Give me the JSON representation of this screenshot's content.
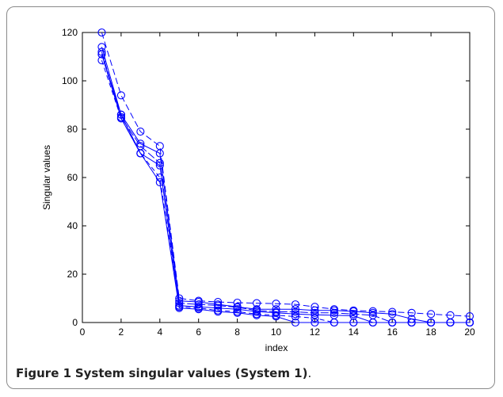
{
  "caption": {
    "label": "Figure 1",
    "title": "System singular values (System 1)",
    "end": "."
  },
  "chart_data": {
    "type": "line",
    "title": "",
    "xlabel": "index",
    "ylabel": "Singular values",
    "xlim": [
      0,
      20
    ],
    "ylim": [
      0,
      120
    ],
    "xticks": [
      0,
      2,
      4,
      6,
      8,
      10,
      12,
      14,
      16,
      18,
      20
    ],
    "yticks": [
      0,
      20,
      40,
      60,
      80,
      100,
      120
    ],
    "grid": false,
    "marker": "circle",
    "color": "#0000ff",
    "series": [
      {
        "x": [
          1,
          2,
          3,
          4,
          5,
          6,
          7,
          8,
          9,
          10,
          11,
          12,
          13,
          14,
          15,
          16,
          17,
          18,
          19,
          20
        ],
        "values": [
          120,
          94,
          79,
          73,
          10,
          9,
          8.5,
          8.2,
          8,
          7.8,
          7.5,
          6.5,
          5.5,
          5,
          4.7,
          4.4,
          4,
          3.5,
          3,
          2.6
        ]
      },
      {
        "x": [
          1,
          2,
          3,
          4,
          5,
          6,
          7,
          8,
          9,
          10,
          11,
          12,
          13,
          14,
          15,
          16,
          17,
          18,
          19,
          20
        ],
        "values": [
          114,
          86,
          74,
          70,
          9,
          8.5,
          7.5,
          6.5,
          5.5,
          5.5,
          5.5,
          5,
          5,
          4.6,
          4,
          3.5,
          1.5,
          0,
          0,
          0
        ]
      },
      {
        "x": [
          1,
          2,
          3,
          4,
          5,
          6,
          7,
          8,
          9,
          10,
          11,
          12,
          13,
          14,
          15,
          16,
          17,
          18,
          19,
          20
        ],
        "values": [
          112,
          85,
          73,
          66,
          8,
          7.5,
          7,
          6.3,
          5,
          4.5,
          4.4,
          4,
          4,
          3.5,
          3,
          0,
          0,
          0,
          0,
          0
        ]
      },
      {
        "x": [
          1,
          2,
          3,
          4,
          5,
          6,
          7,
          8,
          9,
          10,
          11,
          12,
          13,
          14,
          15,
          16,
          17,
          18,
          19,
          20
        ],
        "values": [
          111,
          84.5,
          70,
          65,
          7,
          6.5,
          6,
          5.5,
          4.5,
          4,
          3.5,
          3.2,
          3,
          2.8,
          0,
          0,
          0,
          0,
          0,
          0
        ]
      },
      {
        "x": [
          1,
          2,
          3,
          4,
          5,
          6,
          7,
          8,
          9,
          10,
          11,
          12,
          13,
          14,
          15,
          16,
          17,
          18,
          19,
          20
        ],
        "values": [
          108.5,
          84.5,
          70,
          60,
          6.5,
          6,
          5,
          4.5,
          3.5,
          3,
          2.5,
          1.8,
          0,
          0,
          0,
          0,
          0,
          0,
          0,
          0
        ]
      },
      {
        "x": [
          1,
          2,
          3,
          4,
          5,
          6,
          7,
          8,
          9,
          10,
          11,
          12,
          13,
          14,
          15,
          16,
          17,
          18,
          19,
          20
        ],
        "values": [
          111,
          86,
          70,
          58,
          6,
          5.5,
          4.5,
          4,
          3,
          2.5,
          0,
          0,
          0,
          0,
          0,
          0,
          0,
          0,
          0,
          0
        ]
      }
    ]
  }
}
